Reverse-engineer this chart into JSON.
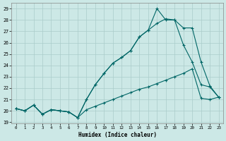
{
  "background_color": "#cce8e6",
  "grid_color": "#aaccca",
  "line_color": "#006666",
  "xlim": [
    -0.5,
    23.5
  ],
  "ylim": [
    18.9,
    29.5
  ],
  "yticks": [
    19,
    20,
    21,
    22,
    23,
    24,
    25,
    26,
    27,
    28,
    29
  ],
  "xticks": [
    0,
    1,
    2,
    3,
    4,
    5,
    6,
    7,
    8,
    9,
    10,
    11,
    12,
    13,
    14,
    15,
    16,
    17,
    18,
    19,
    20,
    21,
    22,
    23
  ],
  "xlabel": "Humidex (Indice chaleur)",
  "line1_x": [
    0,
    1,
    2,
    3,
    4,
    5,
    6,
    7,
    8,
    9,
    10,
    11,
    12,
    13,
    14,
    15,
    16,
    17,
    18,
    19,
    20,
    21,
    22,
    23
  ],
  "line1_y": [
    20.2,
    20.0,
    20.5,
    19.7,
    20.1,
    20.0,
    19.9,
    19.4,
    20.1,
    20.4,
    20.7,
    21.0,
    21.3,
    21.6,
    21.9,
    22.1,
    22.4,
    22.7,
    23.0,
    23.3,
    23.7,
    21.1,
    21.0,
    21.2
  ],
  "line2_x": [
    0,
    1,
    2,
    3,
    4,
    5,
    6,
    7,
    8,
    9,
    10,
    11,
    12,
    13,
    14,
    15,
    16,
    17,
    18,
    19,
    20,
    21,
    22,
    23
  ],
  "line2_y": [
    20.2,
    20.0,
    20.5,
    19.7,
    20.1,
    20.0,
    19.9,
    19.4,
    21.0,
    22.3,
    23.3,
    24.2,
    24.7,
    25.3,
    26.5,
    27.1,
    27.7,
    28.1,
    28.0,
    25.8,
    24.3,
    22.3,
    22.1,
    21.2
  ],
  "line3_x": [
    0,
    1,
    2,
    3,
    4,
    5,
    6,
    7,
    8,
    9,
    10,
    11,
    12,
    13,
    14,
    15,
    16,
    17,
    18,
    19,
    20,
    21,
    22,
    23
  ],
  "line3_y": [
    20.2,
    20.0,
    20.5,
    19.7,
    20.1,
    20.0,
    19.9,
    19.4,
    21.0,
    22.3,
    23.3,
    24.2,
    24.7,
    25.3,
    26.5,
    27.1,
    29.0,
    28.0,
    28.0,
    27.3,
    27.3,
    24.3,
    22.2,
    21.2
  ]
}
